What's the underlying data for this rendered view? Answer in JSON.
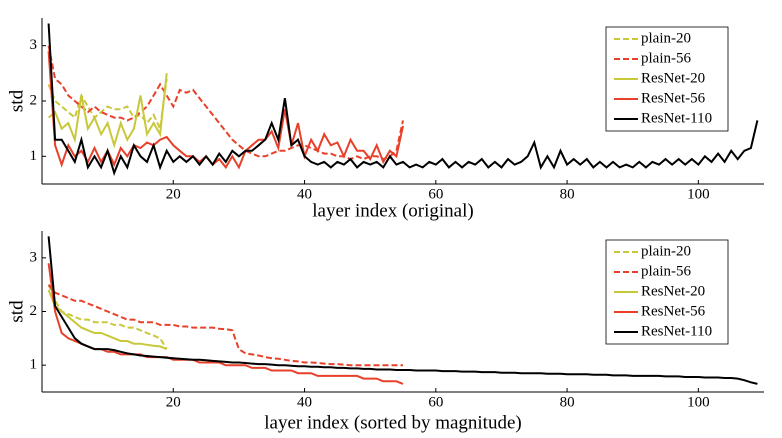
{
  "chart_data": [
    {
      "type": "line",
      "xlabel": "layer index (original)",
      "ylabel": "std",
      "xlim": [
        0,
        110
      ],
      "xticks": [
        20,
        40,
        60,
        80,
        100
      ],
      "ylim": [
        0.5,
        3.5
      ],
      "yticks": [
        1,
        2,
        3
      ],
      "legend": "upper right",
      "series": [
        {
          "name": "plain-20",
          "color": "#c8c83a",
          "linestyle": "dashed",
          "x": [
            1,
            2,
            3,
            4,
            5,
            6,
            7,
            8,
            9,
            10,
            11,
            12,
            13,
            14,
            15,
            16,
            17,
            18,
            19
          ],
          "values": [
            2.3,
            2.0,
            1.9,
            1.8,
            1.7,
            2.1,
            1.9,
            1.7,
            1.8,
            1.9,
            1.85,
            1.85,
            1.9,
            1.7,
            1.75,
            1.6,
            1.75,
            1.5,
            2.4
          ]
        },
        {
          "name": "plain-56",
          "color": "#e8402a",
          "linestyle": "dashed",
          "x": [
            1,
            2,
            3,
            4,
            5,
            6,
            7,
            8,
            9,
            10,
            11,
            12,
            13,
            14,
            15,
            16,
            17,
            18,
            19,
            20,
            21,
            22,
            23,
            24,
            25,
            26,
            27,
            28,
            29,
            30,
            31,
            32,
            33,
            34,
            35,
            36,
            37,
            38,
            39,
            40,
            41,
            42,
            43,
            44,
            45,
            46,
            47,
            48,
            49,
            50,
            51,
            52,
            53,
            54,
            55
          ],
          "values": [
            3.0,
            2.4,
            2.3,
            2.1,
            2.0,
            1.9,
            1.8,
            1.9,
            1.8,
            1.75,
            1.7,
            1.7,
            1.65,
            1.7,
            1.8,
            1.9,
            2.1,
            2.3,
            2.1,
            1.9,
            2.2,
            2.15,
            2.2,
            2.05,
            1.9,
            1.75,
            1.6,
            1.45,
            1.3,
            1.2,
            1.1,
            1.05,
            1.0,
            1.0,
            1.05,
            1.1,
            1.1,
            1.15,
            1.2,
            1.2,
            1.15,
            1.1,
            1.05,
            1.05,
            1.0,
            1.0,
            0.95,
            1.0,
            0.95,
            1.0,
            1.0,
            0.95,
            1.0,
            1.1,
            1.65
          ]
        },
        {
          "name": "ResNet-20",
          "color": "#c8c83a",
          "linestyle": "solid",
          "x": [
            1,
            2,
            3,
            4,
            5,
            6,
            7,
            8,
            9,
            10,
            11,
            12,
            13,
            14,
            15,
            16,
            17,
            18,
            19
          ],
          "values": [
            1.7,
            1.8,
            1.5,
            1.6,
            1.3,
            2.1,
            1.5,
            1.7,
            1.4,
            1.6,
            1.2,
            1.6,
            1.3,
            1.5,
            2.1,
            1.4,
            1.6,
            1.4,
            2.5
          ]
        },
        {
          "name": "ResNet-56",
          "color": "#e8402a",
          "linestyle": "solid",
          "x": [
            1,
            2,
            3,
            4,
            5,
            6,
            7,
            8,
            9,
            10,
            11,
            12,
            13,
            14,
            15,
            16,
            17,
            18,
            19,
            20,
            21,
            22,
            23,
            24,
            25,
            26,
            27,
            28,
            29,
            30,
            31,
            32,
            33,
            34,
            35,
            36,
            37,
            38,
            39,
            40,
            41,
            42,
            43,
            44,
            45,
            46,
            47,
            48,
            49,
            50,
            51,
            52,
            53,
            54,
            55
          ],
          "values": [
            2.9,
            1.2,
            0.85,
            1.2,
            1.0,
            1.1,
            0.9,
            1.15,
            0.9,
            1.1,
            0.85,
            1.15,
            1.0,
            1.2,
            1.15,
            1.25,
            1.2,
            1.3,
            1.35,
            1.2,
            1.1,
            1.0,
            1.0,
            0.9,
            1.0,
            0.85,
            0.95,
            0.8,
            1.0,
            0.8,
            1.1,
            1.2,
            1.3,
            1.3,
            1.45,
            1.15,
            1.85,
            1.2,
            1.6,
            1.0,
            1.3,
            1.1,
            1.4,
            1.2,
            1.25,
            1.0,
            1.3,
            1.1,
            1.1,
            0.95,
            1.2,
            0.9,
            1.1,
            1.0,
            1.55
          ]
        },
        {
          "name": "ResNet-110",
          "color": "#000000",
          "linestyle": "solid",
          "x": [
            1,
            2,
            3,
            4,
            5,
            6,
            7,
            8,
            9,
            10,
            11,
            12,
            13,
            14,
            15,
            16,
            17,
            18,
            19,
            20,
            21,
            22,
            23,
            24,
            25,
            26,
            27,
            28,
            29,
            30,
            31,
            32,
            33,
            34,
            35,
            36,
            37,
            38,
            39,
            40,
            41,
            42,
            43,
            44,
            45,
            46,
            47,
            48,
            49,
            50,
            51,
            52,
            53,
            54,
            55,
            56,
            57,
            58,
            59,
            60,
            61,
            62,
            63,
            64,
            65,
            66,
            67,
            68,
            69,
            70,
            71,
            72,
            73,
            74,
            75,
            76,
            77,
            78,
            79,
            80,
            81,
            82,
            83,
            84,
            85,
            86,
            87,
            88,
            89,
            90,
            91,
            92,
            93,
            94,
            95,
            96,
            97,
            98,
            99,
            100,
            101,
            102,
            103,
            104,
            105,
            106,
            107,
            108,
            109
          ],
          "values": [
            3.4,
            1.3,
            1.3,
            1.1,
            0.9,
            1.3,
            0.8,
            1.0,
            0.8,
            1.1,
            0.7,
            1.0,
            0.8,
            1.2,
            1.0,
            0.9,
            1.2,
            0.8,
            1.1,
            0.9,
            1.0,
            0.9,
            1.0,
            0.85,
            1.0,
            0.85,
            1.05,
            0.9,
            1.1,
            1.0,
            1.1,
            1.1,
            1.2,
            1.3,
            1.6,
            1.3,
            2.05,
            1.2,
            1.3,
            1.0,
            0.9,
            0.85,
            0.9,
            0.8,
            0.9,
            0.85,
            0.95,
            0.8,
            0.9,
            0.85,
            0.9,
            0.8,
            1.0,
            0.85,
            0.9,
            0.8,
            0.85,
            0.8,
            0.9,
            0.85,
            0.95,
            0.8,
            0.9,
            0.8,
            0.9,
            0.85,
            0.95,
            0.8,
            0.9,
            0.8,
            0.95,
            0.85,
            0.9,
            1.0,
            1.25,
            0.8,
            1.0,
            0.8,
            1.1,
            0.85,
            0.95,
            0.85,
            0.95,
            0.8,
            0.9,
            0.8,
            0.9,
            0.8,
            0.85,
            0.8,
            0.9,
            0.8,
            0.9,
            0.85,
            0.95,
            0.85,
            0.95,
            0.85,
            0.95,
            0.85,
            1.0,
            0.9,
            1.05,
            0.9,
            1.1,
            0.95,
            1.1,
            1.15,
            1.65
          ]
        }
      ]
    },
    {
      "type": "line",
      "xlabel": "layer index (sorted by magnitude)",
      "ylabel": "std",
      "xlim": [
        0,
        110
      ],
      "xticks": [
        20,
        40,
        60,
        80,
        100
      ],
      "ylim": [
        0.5,
        3.5
      ],
      "yticks": [
        1,
        2,
        3
      ],
      "legend": "upper right",
      "series": [
        {
          "name": "plain-20",
          "color": "#c8c83a",
          "linestyle": "dashed",
          "x": [
            1,
            2,
            3,
            4,
            5,
            6,
            7,
            8,
            9,
            10,
            11,
            12,
            13,
            14,
            15,
            16,
            17,
            18,
            19
          ],
          "values": [
            2.5,
            2.2,
            2.0,
            1.95,
            1.9,
            1.85,
            1.85,
            1.8,
            1.8,
            1.8,
            1.75,
            1.75,
            1.7,
            1.7,
            1.65,
            1.6,
            1.55,
            1.5,
            1.3
          ]
        },
        {
          "name": "plain-56",
          "color": "#e8402a",
          "linestyle": "dashed",
          "x": [
            1,
            2,
            3,
            4,
            5,
            6,
            7,
            8,
            9,
            10,
            11,
            12,
            13,
            14,
            15,
            16,
            17,
            18,
            19,
            20,
            21,
            22,
            23,
            24,
            25,
            26,
            27,
            28,
            29,
            30,
            31,
            32,
            33,
            34,
            35,
            36,
            37,
            38,
            39,
            40,
            41,
            42,
            43,
            44,
            45,
            46,
            47,
            48,
            49,
            50,
            51,
            52,
            53,
            54,
            55
          ],
          "values": [
            2.5,
            2.35,
            2.3,
            2.25,
            2.2,
            2.2,
            2.15,
            2.1,
            2.05,
            2.0,
            1.95,
            1.9,
            1.85,
            1.85,
            1.8,
            1.8,
            1.8,
            1.75,
            1.75,
            1.75,
            1.72,
            1.72,
            1.7,
            1.7,
            1.7,
            1.7,
            1.68,
            1.67,
            1.65,
            1.3,
            1.22,
            1.2,
            1.18,
            1.15,
            1.13,
            1.12,
            1.1,
            1.08,
            1.07,
            1.05,
            1.05,
            1.04,
            1.03,
            1.02,
            1.02,
            1.01,
            1.0,
            1.0,
            1.0,
            1.0,
            1.0,
            1.0,
            1.0,
            1.0,
            1.0
          ]
        },
        {
          "name": "ResNet-20",
          "color": "#c8c83a",
          "linestyle": "solid",
          "x": [
            1,
            2,
            3,
            4,
            5,
            6,
            7,
            8,
            9,
            10,
            11,
            12,
            13,
            14,
            15,
            16,
            17,
            18,
            19
          ],
          "values": [
            2.4,
            2.1,
            2.0,
            1.9,
            1.8,
            1.7,
            1.65,
            1.6,
            1.6,
            1.55,
            1.5,
            1.45,
            1.45,
            1.4,
            1.4,
            1.38,
            1.36,
            1.35,
            1.3
          ]
        },
        {
          "name": "ResNet-56",
          "color": "#e8402a",
          "linestyle": "solid",
          "x": [
            1,
            2,
            3,
            4,
            5,
            6,
            7,
            8,
            9,
            10,
            11,
            12,
            13,
            14,
            15,
            16,
            17,
            18,
            19,
            20,
            21,
            22,
            23,
            24,
            25,
            26,
            27,
            28,
            29,
            30,
            31,
            32,
            33,
            34,
            35,
            36,
            37,
            38,
            39,
            40,
            41,
            42,
            43,
            44,
            45,
            46,
            47,
            48,
            49,
            50,
            51,
            52,
            53,
            54,
            55
          ],
          "values": [
            2.9,
            2.0,
            1.6,
            1.5,
            1.45,
            1.4,
            1.35,
            1.3,
            1.3,
            1.25,
            1.25,
            1.2,
            1.2,
            1.2,
            1.2,
            1.15,
            1.15,
            1.15,
            1.15,
            1.1,
            1.1,
            1.1,
            1.1,
            1.05,
            1.05,
            1.05,
            1.05,
            1.0,
            1.0,
            1.0,
            1.0,
            0.95,
            0.95,
            0.95,
            0.9,
            0.9,
            0.9,
            0.9,
            0.85,
            0.85,
            0.85,
            0.8,
            0.8,
            0.8,
            0.8,
            0.8,
            0.8,
            0.8,
            0.75,
            0.75,
            0.75,
            0.7,
            0.7,
            0.7,
            0.65
          ]
        },
        {
          "name": "ResNet-110",
          "color": "#000000",
          "linestyle": "solid",
          "x": [
            1,
            2,
            3,
            4,
            5,
            6,
            7,
            8,
            9,
            10,
            11,
            12,
            13,
            14,
            15,
            16,
            17,
            18,
            19,
            20,
            21,
            22,
            23,
            24,
            25,
            26,
            27,
            28,
            29,
            30,
            31,
            32,
            33,
            34,
            35,
            36,
            37,
            38,
            39,
            40,
            41,
            42,
            43,
            44,
            45,
            46,
            47,
            48,
            49,
            50,
            51,
            52,
            53,
            54,
            55,
            56,
            57,
            58,
            59,
            60,
            61,
            62,
            63,
            64,
            65,
            66,
            67,
            68,
            69,
            70,
            71,
            72,
            73,
            74,
            75,
            76,
            77,
            78,
            79,
            80,
            81,
            82,
            83,
            84,
            85,
            86,
            87,
            88,
            89,
            90,
            91,
            92,
            93,
            94,
            95,
            96,
            97,
            98,
            99,
            100,
            101,
            102,
            103,
            104,
            105,
            106,
            107,
            108,
            109
          ],
          "values": [
            3.4,
            2.1,
            1.9,
            1.7,
            1.5,
            1.4,
            1.35,
            1.3,
            1.3,
            1.3,
            1.28,
            1.25,
            1.22,
            1.2,
            1.18,
            1.17,
            1.16,
            1.15,
            1.14,
            1.13,
            1.12,
            1.11,
            1.1,
            1.1,
            1.09,
            1.08,
            1.07,
            1.06,
            1.05,
            1.05,
            1.04,
            1.03,
            1.02,
            1.02,
            1.01,
            1.0,
            1.0,
            0.99,
            0.98,
            0.98,
            0.97,
            0.97,
            0.96,
            0.96,
            0.95,
            0.95,
            0.94,
            0.94,
            0.93,
            0.93,
            0.92,
            0.92,
            0.92,
            0.91,
            0.91,
            0.91,
            0.9,
            0.9,
            0.9,
            0.9,
            0.89,
            0.89,
            0.89,
            0.88,
            0.88,
            0.88,
            0.87,
            0.87,
            0.87,
            0.86,
            0.86,
            0.86,
            0.85,
            0.85,
            0.85,
            0.85,
            0.84,
            0.84,
            0.84,
            0.83,
            0.83,
            0.83,
            0.83,
            0.82,
            0.82,
            0.82,
            0.81,
            0.81,
            0.81,
            0.8,
            0.8,
            0.8,
            0.8,
            0.8,
            0.79,
            0.79,
            0.79,
            0.78,
            0.78,
            0.78,
            0.77,
            0.77,
            0.77,
            0.76,
            0.76,
            0.75,
            0.72,
            0.68,
            0.65
          ]
        }
      ]
    }
  ]
}
